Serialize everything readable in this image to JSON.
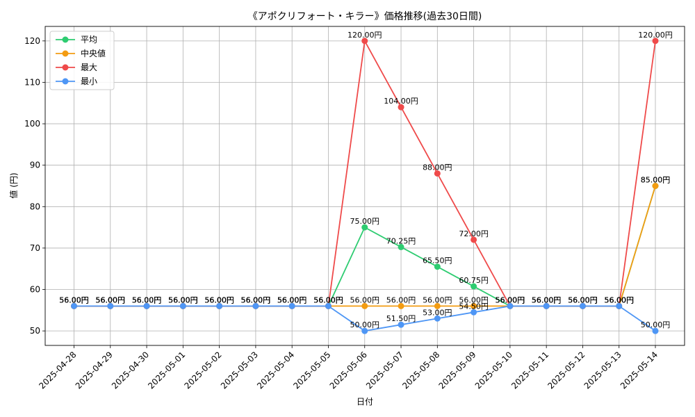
{
  "chart_data": {
    "type": "line",
    "title": "《アポクリフォート・キラー》価格推移(過去30日間)",
    "xlabel": "日付",
    "ylabel": "値 (円)",
    "ylim": [
      46.5,
      123.5
    ],
    "yticks": [
      50,
      60,
      70,
      80,
      90,
      100,
      110,
      120
    ],
    "grid": true,
    "legend_position": "top-left",
    "value_suffix": "円",
    "categories": [
      "2025-04-28",
      "2025-04-29",
      "2025-04-30",
      "2025-05-01",
      "2025-05-02",
      "2025-05-03",
      "2025-05-04",
      "2025-05-05",
      "2025-05-06",
      "2025-05-07",
      "2025-05-08",
      "2025-05-09",
      "2025-05-10",
      "2025-05-11",
      "2025-05-12",
      "2025-05-13",
      "2025-05-14"
    ],
    "series": [
      {
        "name": "平均",
        "color": "#2ecc71",
        "values": [
          56,
          56,
          56,
          56,
          56,
          56,
          56,
          56,
          75,
          70.25,
          65.5,
          60.75,
          56,
          56,
          56,
          56,
          85
        ]
      },
      {
        "name": "中央値",
        "color": "#f39c12",
        "values": [
          56,
          56,
          56,
          56,
          56,
          56,
          56,
          56,
          56,
          56,
          56,
          56,
          56,
          56,
          56,
          56,
          85
        ]
      },
      {
        "name": "最大",
        "color": "#ef4a4a",
        "values": [
          56,
          56,
          56,
          56,
          56,
          56,
          56,
          56,
          120,
          104,
          88,
          72,
          56,
          56,
          56,
          56,
          120
        ]
      },
      {
        "name": "最小",
        "color": "#4e96f5",
        "values": [
          56,
          56,
          56,
          56,
          56,
          56,
          56,
          56,
          50,
          51.5,
          53,
          54.5,
          56,
          56,
          56,
          56,
          50
        ]
      }
    ]
  }
}
